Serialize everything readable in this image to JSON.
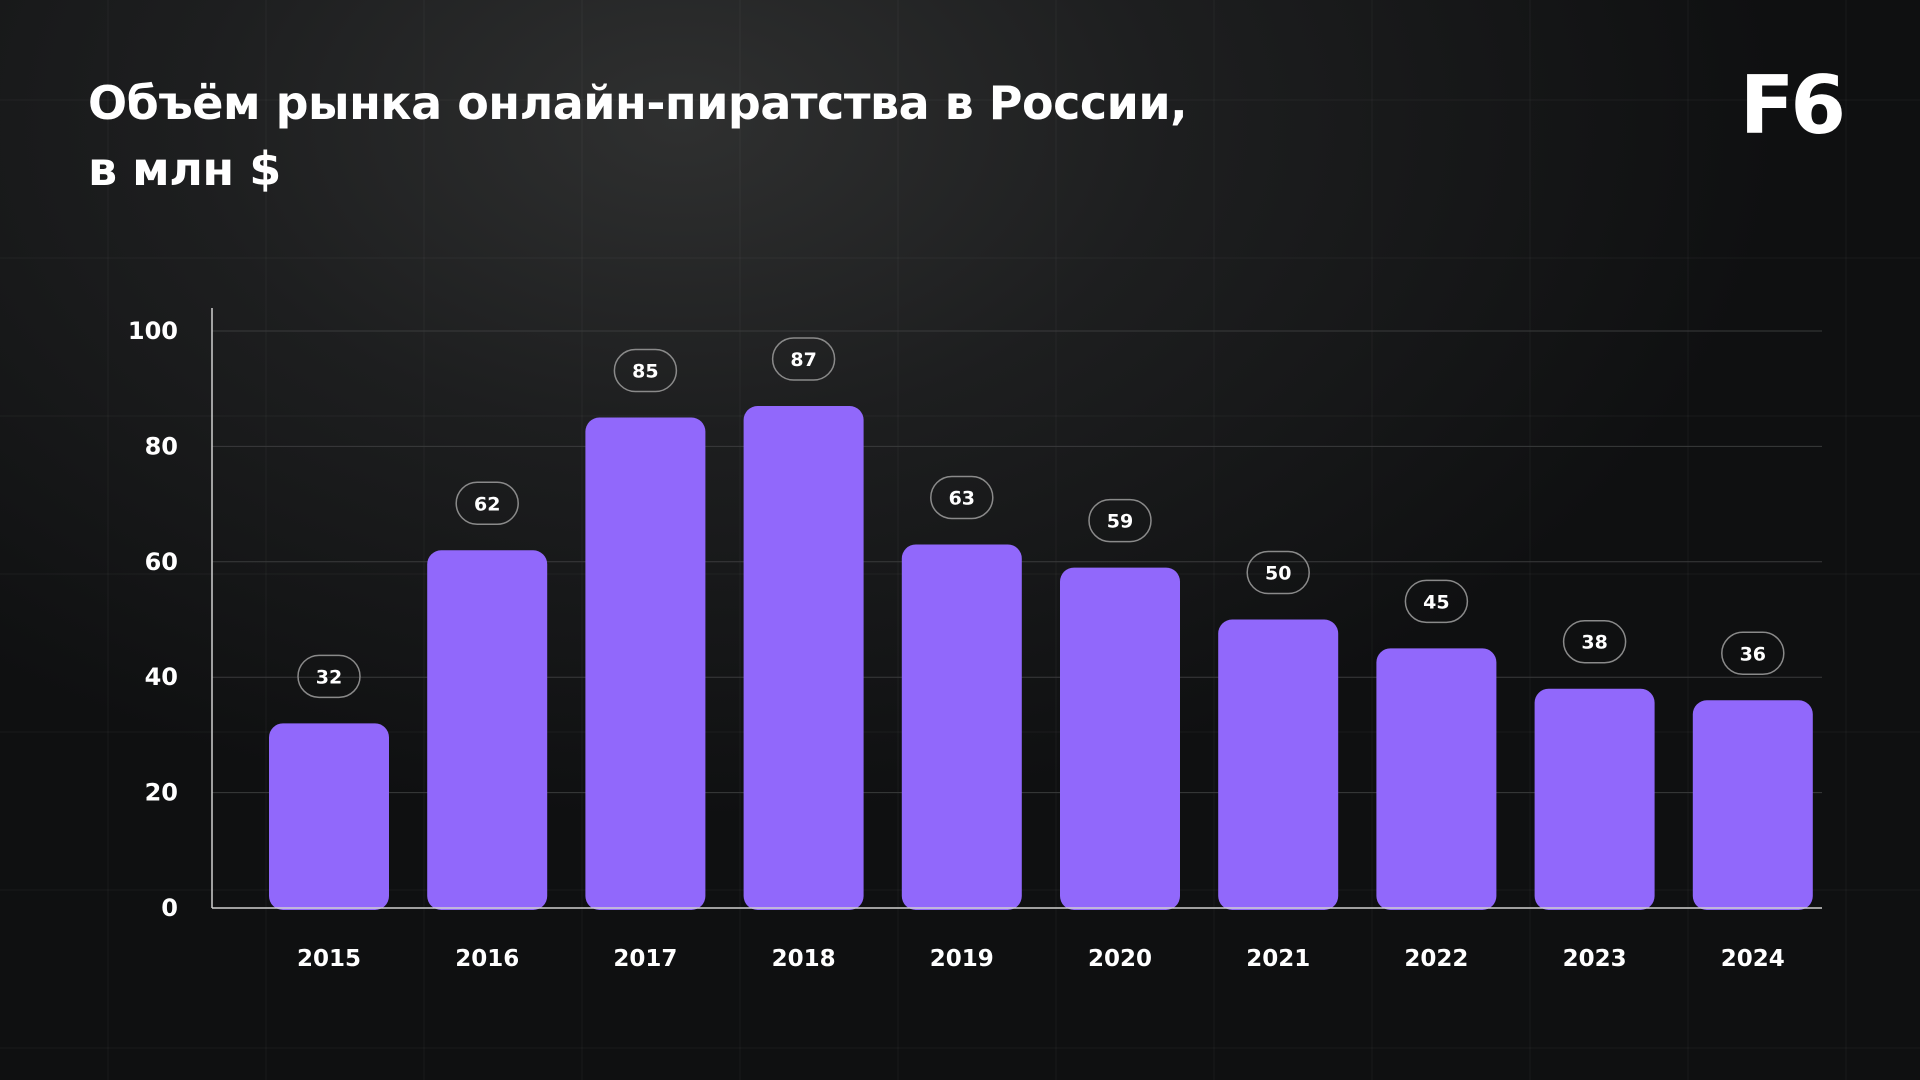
{
  "header": {
    "title_line1": "Объём рынка онлайн-пиратства в России,",
    "title_line2": "в млн $",
    "logo_text": "F6"
  },
  "colors": {
    "bar": "#9168fb",
    "label_border": "#8a8a8a",
    "gridline": "#3a3b3c",
    "axis": "#d0d0d0"
  },
  "chart_data": {
    "type": "bar",
    "title": "Объём рынка онлайн-пиратства в России, в млн $",
    "categories": [
      "2015",
      "2016",
      "2017",
      "2018",
      "2019",
      "2020",
      "2021",
      "2022",
      "2023",
      "2024"
    ],
    "values": [
      32,
      62,
      85,
      87,
      63,
      59,
      50,
      45,
      38,
      36
    ],
    "ylim": [
      0,
      100
    ],
    "yticks": [
      0,
      20,
      40,
      60,
      80,
      100
    ],
    "xlabel": "",
    "ylabel": "",
    "grid": true,
    "legend": "none"
  }
}
